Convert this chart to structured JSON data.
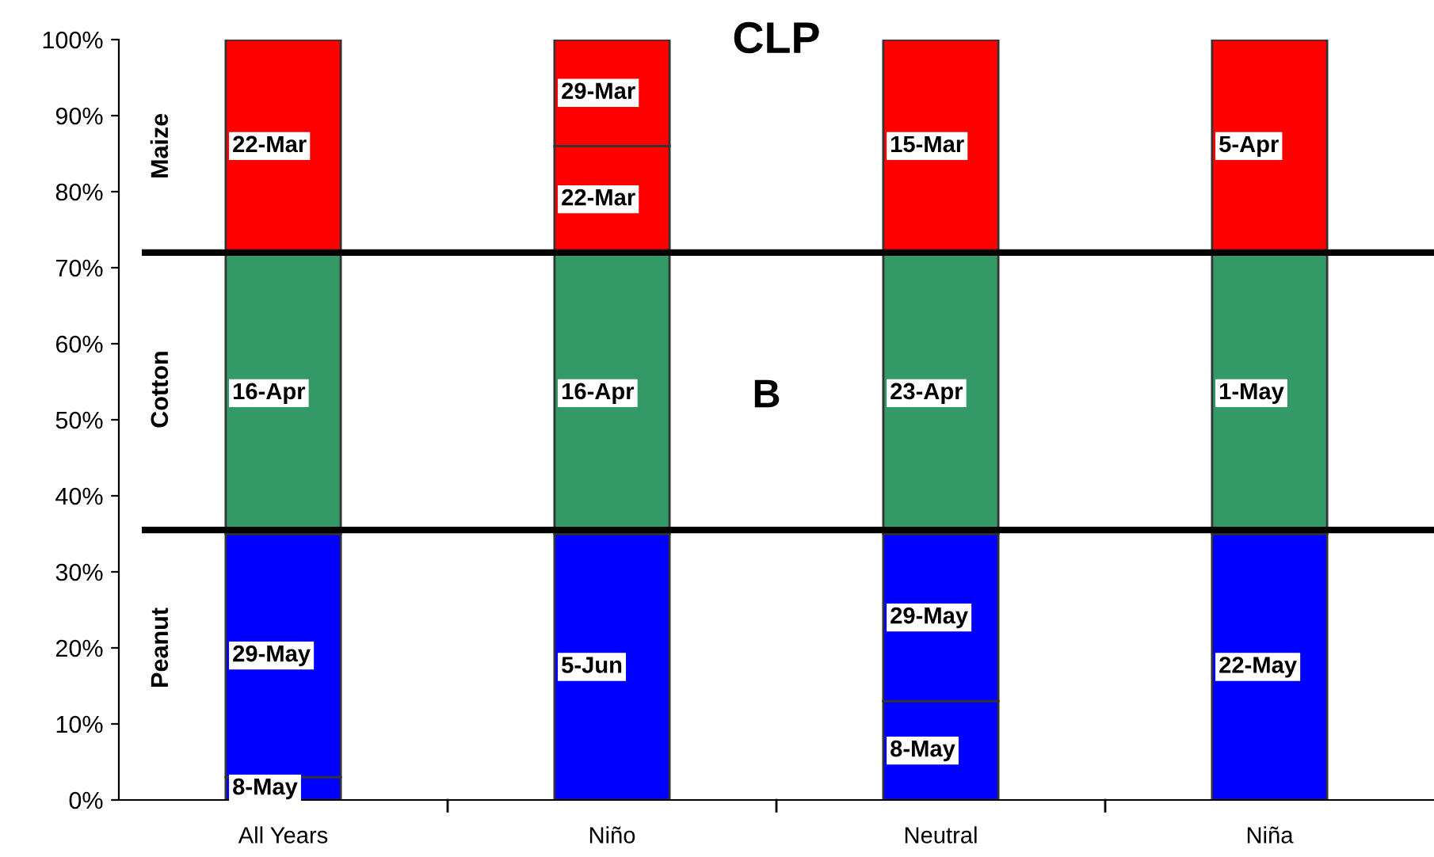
{
  "chart_data": {
    "type": "bar",
    "stacked": true,
    "title": "CLP",
    "categories": [
      "All Years",
      "Niño",
      "Neutral",
      "Niña"
    ],
    "series": [
      {
        "color": "#0000ff",
        "values": [
          3,
          35,
          13,
          35
        ],
        "value_labels": [
          "8-May",
          "5-Jun",
          "8-May",
          "22-May"
        ]
      },
      {
        "color": "#0000ff",
        "values": [
          32,
          null,
          22,
          null
        ],
        "value_labels": [
          "29-May",
          null,
          "29-May",
          null
        ]
      },
      {
        "color": "#339966",
        "values": [
          37,
          37,
          37,
          37
        ],
        "value_labels": [
          "16-Apr",
          "16-Apr",
          "23-Apr",
          "1-May"
        ]
      },
      {
        "color": "#ff0000",
        "values": [
          28,
          14,
          28,
          28
        ],
        "value_labels": [
          "22-Mar",
          "22-Mar",
          "15-Mar",
          "5-Apr"
        ]
      },
      {
        "color": "#ff0000",
        "values": [
          null,
          14,
          null,
          null
        ],
        "value_labels": [
          null,
          "29-Mar",
          null,
          null
        ]
      }
    ],
    "ylim": [
      0,
      100
    ],
    "yticks": [
      {
        "value": 0,
        "label": "0%"
      },
      {
        "value": 10,
        "label": "10%"
      },
      {
        "value": 20,
        "label": "20%"
      },
      {
        "value": 30,
        "label": "30%"
      },
      {
        "value": 40,
        "label": "40%"
      },
      {
        "value": 50,
        "label": "50%"
      },
      {
        "value": 60,
        "label": "60%"
      },
      {
        "value": 70,
        "label": "70%"
      },
      {
        "value": 80,
        "label": "80%"
      },
      {
        "value": 90,
        "label": "90%"
      },
      {
        "value": 100,
        "label": "100%"
      }
    ],
    "ref_lines": [
      {
        "axis": "y",
        "value": 72,
        "color": "#000000"
      },
      {
        "axis": "y",
        "value": 35.5,
        "color": "#000000"
      }
    ],
    "annotations": [
      "Maize",
      "Cotton",
      "Peanut",
      "B"
    ],
    "grid": false,
    "legend": false
  }
}
